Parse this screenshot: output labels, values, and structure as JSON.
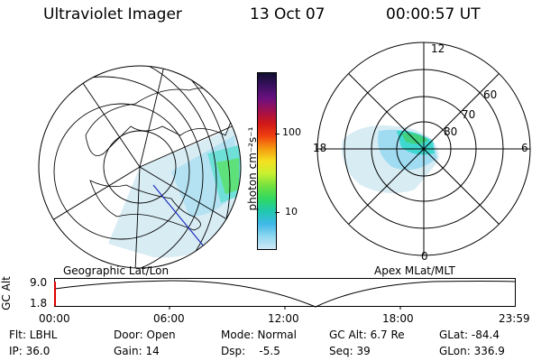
{
  "header": {
    "title": "Ultraviolet Imager",
    "date": "13 Oct 07",
    "time": "00:00:57 UT"
  },
  "colorbar": {
    "unit_label": "photon cm⁻²s⁻¹",
    "ticks": [
      "100",
      "10"
    ],
    "colors": [
      "#101030",
      "#3a1060",
      "#6a1080",
      "#a01050",
      "#d01818",
      "#f04010",
      "#f49a10",
      "#f4e020",
      "#c8f030",
      "#70e040",
      "#30d860",
      "#20c8b0",
      "#40b8e8",
      "#90d8f0",
      "#cfe9f7"
    ]
  },
  "left_map": {
    "caption": "Geographic Lat/Lon"
  },
  "right_map": {
    "caption": "Apex MLat/MLT",
    "lat_labels": [
      "80",
      "70",
      "60"
    ],
    "mlt_labels": [
      "12",
      "18",
      "6",
      "0"
    ]
  },
  "timeline": {
    "ylabel": "GC Alt",
    "ytick_top": "9.0",
    "ytick_bottom": "1.8",
    "xticks": [
      "00:00",
      "06:00",
      "12:00",
      "18:00",
      "23:59"
    ]
  },
  "info": {
    "flt": "Flt: LBHL",
    "ip": "IP: 36.0",
    "door": "Door: Open",
    "gain": "Gain: 14",
    "mode": "Mode: Normal",
    "dsp": "Dsp:    -5.5",
    "gcalt": "GC Alt: 6.7 Re",
    "seq": "Seq: 39",
    "glat": "GLat: -84.4",
    "glon": "GLon: 336.9"
  }
}
